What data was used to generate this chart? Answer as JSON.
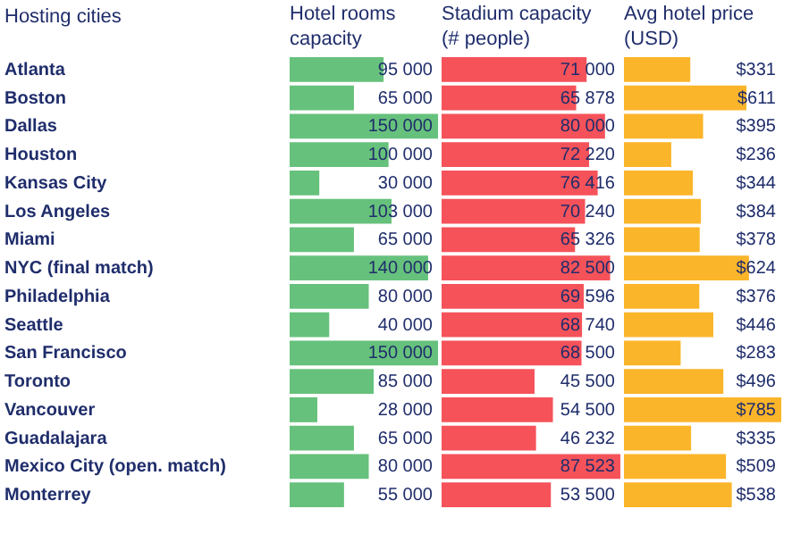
{
  "chart_data": [
    {
      "type": "bar",
      "orientation": "horizontal",
      "title": "Hotel rooms capacity",
      "ylabel": "Hosting cities",
      "tick_labels": "y",
      "color": "#66c17c",
      "categories": [
        "Atlanta",
        "Boston",
        "Dallas",
        "Houston",
        "Kansas City",
        "Los Angeles",
        "Miami",
        "NYC (final match)",
        "Philadelphia",
        "Seattle",
        "San Francisco",
        "Toronto",
        "Vancouver",
        "Guadalajara",
        "Mexico City (open. match)",
        "Monterrey"
      ],
      "values": [
        95000,
        65000,
        150000,
        100000,
        30000,
        103000,
        65000,
        140000,
        80000,
        40000,
        150000,
        85000,
        28000,
        65000,
        80000,
        55000
      ],
      "value_labels": [
        "95 000",
        "65 000",
        "150 000",
        "100 000",
        "30 000",
        "103 000",
        "65 000",
        "140 000",
        "80 000",
        "40 000",
        "150 000",
        "85 000",
        "28 000",
        "65 000",
        "80 000",
        "55 000"
      ]
    },
    {
      "type": "bar",
      "orientation": "horizontal",
      "title": "Stadium capacity (# people)",
      "tick_labels": false,
      "color": "#f5525a",
      "values": [
        71000,
        65878,
        80000,
        72220,
        76416,
        70240,
        65326,
        82500,
        69596,
        68740,
        68500,
        45500,
        54500,
        46232,
        87523,
        53500
      ],
      "value_labels": [
        "71 000",
        "65 878",
        "80 000",
        "72 220",
        "76 416",
        "70 240",
        "65 326",
        "82 500",
        "69 596",
        "68 740",
        "68 500",
        "45 500",
        "54 500",
        "46 232",
        "87 523",
        "53 500"
      ]
    },
    {
      "type": "bar",
      "orientation": "horizontal",
      "title": "Avg hotel price (USD)",
      "tick_labels": false,
      "color": "#fbb52a",
      "values": [
        331,
        611,
        395,
        236,
        344,
        384,
        378,
        624,
        376,
        446,
        283,
        496,
        785,
        335,
        509,
        538
      ],
      "value_labels": [
        "$331",
        "$611",
        "$395",
        "$236",
        "$344",
        "$384",
        "$378",
        "$624",
        "$376",
        "$446",
        "$283",
        "$496",
        "$785",
        "$335",
        "$509",
        "$538"
      ]
    }
  ]
}
